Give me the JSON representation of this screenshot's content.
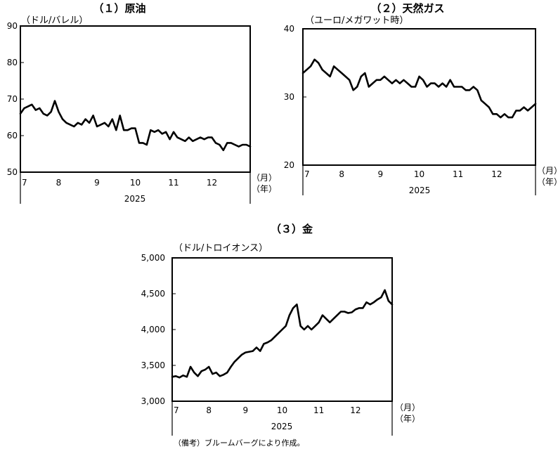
{
  "note": "（備考）ブルームバーグにより作成。",
  "chart_data": [
    {
      "type": "line",
      "title": "（１）原油",
      "ylabel": "（ドル/バレル）",
      "ylim": [
        50,
        90
      ],
      "yticks": [
        "50",
        "60",
        "70",
        "80",
        "90"
      ],
      "xlim": [
        0,
        6
      ],
      "month_ticks": [
        "7",
        "8",
        "9",
        "10",
        "11",
        "12"
      ],
      "month_unit": "（月）",
      "year": "2025",
      "year_unit": "（年）",
      "series": [
        {
          "x": [
            0,
            0.1,
            0.2,
            0.3,
            0.4,
            0.5,
            0.6,
            0.7,
            0.8,
            0.9,
            1.0,
            1.1,
            1.2,
            1.3,
            1.4,
            1.5,
            1.6,
            1.7,
            1.8,
            1.9,
            2.0,
            2.1,
            2.2,
            2.3,
            2.4,
            2.5,
            2.6,
            2.7,
            2.8,
            2.9,
            3.0,
            3.1,
            3.2,
            3.3,
            3.4,
            3.5,
            3.6,
            3.7,
            3.8,
            3.9,
            4.0,
            4.1,
            4.2,
            4.3,
            4.4,
            4.5,
            4.6,
            4.7,
            4.8,
            4.9,
            5.0,
            5.1,
            5.2,
            5.3,
            5.4,
            5.5,
            5.6,
            5.7,
            5.8,
            5.9,
            6.0
          ],
          "y": [
            66.0,
            67.5,
            68.0,
            68.5,
            67.0,
            67.5,
            66.0,
            65.5,
            66.5,
            69.5,
            66.5,
            64.5,
            63.5,
            63.0,
            62.5,
            63.5,
            63.0,
            64.5,
            63.5,
            65.5,
            62.5,
            63.0,
            63.5,
            62.5,
            64.5,
            61.5,
            65.5,
            61.5,
            61.5,
            62.0,
            62.0,
            58.0,
            58.0,
            57.5,
            61.5,
            61.0,
            61.5,
            60.5,
            61.0,
            59.0,
            61.0,
            59.5,
            59.0,
            58.5,
            59.5,
            58.5,
            59.0,
            59.5,
            59.0,
            59.5,
            59.5,
            58.0,
            57.5,
            56.0,
            58.0,
            58.0,
            57.5,
            57.0,
            57.5,
            57.5,
            57.0
          ]
        }
      ]
    },
    {
      "type": "line",
      "title": "（２）天然ガス",
      "ylabel": "（ユーロ/メガワット時）",
      "ylim": [
        20,
        40
      ],
      "yticks": [
        "20",
        "30",
        "40"
      ],
      "xlim": [
        0,
        6
      ],
      "month_ticks": [
        "7",
        "8",
        "9",
        "10",
        "11",
        "12"
      ],
      "month_unit": "（月）",
      "year": "2025",
      "year_unit": "（年）",
      "series": [
        {
          "x": [
            0,
            0.1,
            0.2,
            0.3,
            0.4,
            0.5,
            0.6,
            0.7,
            0.8,
            0.9,
            1.0,
            1.1,
            1.2,
            1.3,
            1.4,
            1.5,
            1.6,
            1.7,
            1.8,
            1.9,
            2.0,
            2.1,
            2.2,
            2.3,
            2.4,
            2.5,
            2.6,
            2.7,
            2.8,
            2.9,
            3.0,
            3.1,
            3.2,
            3.3,
            3.4,
            3.5,
            3.6,
            3.7,
            3.8,
            3.9,
            4.0,
            4.1,
            4.2,
            4.3,
            4.4,
            4.5,
            4.6,
            4.7,
            4.8,
            4.9,
            5.0,
            5.1,
            5.2,
            5.3,
            5.4,
            5.5,
            5.6,
            5.7,
            5.8,
            5.9,
            6.0
          ],
          "y": [
            33.5,
            34.0,
            34.5,
            35.5,
            35.0,
            34.0,
            33.5,
            33.0,
            34.5,
            34.0,
            33.5,
            33.0,
            32.5,
            31.0,
            31.5,
            33.0,
            33.5,
            31.5,
            32.0,
            32.5,
            32.5,
            33.0,
            32.5,
            32.0,
            32.5,
            32.0,
            32.5,
            32.0,
            31.5,
            31.5,
            33.0,
            32.5,
            31.5,
            32.0,
            32.0,
            31.5,
            32.0,
            31.5,
            32.5,
            31.5,
            31.5,
            31.5,
            31.0,
            31.0,
            31.5,
            31.0,
            29.5,
            29.0,
            28.5,
            27.5,
            27.5,
            27.0,
            27.5,
            27.0,
            27.0,
            28.0,
            28.0,
            28.5,
            28.0,
            28.5,
            29.0
          ]
        }
      ]
    },
    {
      "type": "line",
      "title": "（３）金",
      "ylabel": "（ドル/トロイオンス）",
      "ylim": [
        3000,
        5000
      ],
      "yticks": [
        "3,000",
        "3,500",
        "4,000",
        "4,500",
        "5,000"
      ],
      "xlim": [
        0,
        6
      ],
      "month_ticks": [
        "7",
        "8",
        "9",
        "10",
        "11",
        "12"
      ],
      "month_unit": "（月）",
      "year": "2025",
      "year_unit": "（年）",
      "series": [
        {
          "x": [
            0,
            0.1,
            0.2,
            0.3,
            0.4,
            0.5,
            0.6,
            0.7,
            0.8,
            0.9,
            1.0,
            1.1,
            1.2,
            1.3,
            1.4,
            1.5,
            1.6,
            1.7,
            1.8,
            1.9,
            2.0,
            2.1,
            2.2,
            2.3,
            2.4,
            2.5,
            2.6,
            2.7,
            2.8,
            2.9,
            3.0,
            3.1,
            3.2,
            3.3,
            3.4,
            3.5,
            3.6,
            3.7,
            3.8,
            3.9,
            4.0,
            4.1,
            4.2,
            4.3,
            4.4,
            4.5,
            4.6,
            4.7,
            4.8,
            4.9,
            5.0,
            5.1,
            5.2,
            5.3,
            5.4,
            5.5,
            5.6,
            5.7,
            5.8,
            5.9,
            6.0
          ],
          "y": [
            3340,
            3350,
            3330,
            3360,
            3340,
            3480,
            3400,
            3350,
            3420,
            3440,
            3480,
            3380,
            3400,
            3350,
            3370,
            3400,
            3480,
            3550,
            3600,
            3650,
            3680,
            3690,
            3700,
            3750,
            3700,
            3800,
            3820,
            3850,
            3900,
            3950,
            4000,
            4050,
            4200,
            4300,
            4350,
            4050,
            4000,
            4050,
            4000,
            4050,
            4100,
            4200,
            4150,
            4100,
            4150,
            4200,
            4250,
            4250,
            4230,
            4240,
            4280,
            4300,
            4300,
            4380,
            4350,
            4380,
            4420,
            4450,
            4550,
            4400,
            4350
          ]
        }
      ]
    }
  ]
}
